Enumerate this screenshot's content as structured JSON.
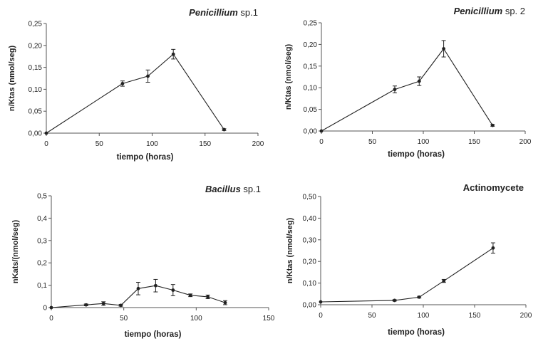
{
  "chart_data": [
    {
      "type": "line",
      "title": {
        "genus": "Penicillium",
        "suffix": " sp.1"
      },
      "xlabel": "tiempo (horas)",
      "ylabel": "n/Ktas (nmol/seg)",
      "xlim": [
        0,
        200
      ],
      "ylim": [
        0,
        0.25
      ],
      "xticks": [
        "0",
        "50",
        "100",
        "150",
        "200"
      ],
      "yticks": [
        "0,00",
        "0,05",
        "0,10",
        "0,15",
        "0,20",
        "0,25"
      ],
      "series": [
        {
          "x": [
            0,
            72,
            96,
            120,
            168
          ],
          "y": [
            0.0,
            0.113,
            0.13,
            0.18,
            0.008
          ],
          "err": [
            0.0,
            0.006,
            0.014,
            0.011,
            0.002
          ]
        }
      ]
    },
    {
      "type": "line",
      "title": {
        "genus": "Penicillium",
        "suffix": " sp. 2"
      },
      "xlabel": "tiempo (horas)",
      "ylabel": "n/Ktas (nmol/seg)",
      "xlim": [
        0,
        200
      ],
      "ylim": [
        0,
        0.25
      ],
      "xticks": [
        "0",
        "50",
        "100",
        "150",
        "200"
      ],
      "yticks": [
        "0,00",
        "0,05",
        "0,10",
        "0,15",
        "0,20",
        "0,25"
      ],
      "series": [
        {
          "x": [
            0,
            72,
            96,
            120,
            168
          ],
          "y": [
            0.0,
            0.096,
            0.115,
            0.19,
            0.013
          ],
          "err": [
            0.0,
            0.008,
            0.01,
            0.019,
            0.002
          ]
        }
      ]
    },
    {
      "type": "line",
      "title": {
        "genus": "Bacillus",
        "suffix": " sp.1"
      },
      "xlabel": "tiempo (horas)",
      "ylabel": "nKats/(nmol/seg)",
      "xlim": [
        0,
        150
      ],
      "ylim": [
        0,
        0.5
      ],
      "xticks": [
        "0",
        "50",
        "100",
        "150"
      ],
      "yticks": [
        "0",
        "0,1",
        "0,2",
        "0,3",
        "0,4",
        "0,5"
      ],
      "series": [
        {
          "x": [
            0,
            24,
            36,
            48,
            60,
            72,
            84,
            96,
            108,
            120
          ],
          "y": [
            0.0,
            0.012,
            0.018,
            0.01,
            0.085,
            0.098,
            0.078,
            0.055,
            0.048,
            0.022
          ],
          "err": [
            0.0,
            0.004,
            0.008,
            0.004,
            0.028,
            0.028,
            0.025,
            0.006,
            0.008,
            0.009
          ]
        }
      ]
    },
    {
      "type": "line",
      "title": {
        "genus": "",
        "suffix": "Actinomycete"
      },
      "xlabel": "tiempo (horas)",
      "ylabel": "n/Ktas (nmol/seg)",
      "xlim": [
        0,
        200
      ],
      "ylim": [
        0,
        0.5
      ],
      "xticks": [
        "0",
        "50",
        "100",
        "150",
        "200"
      ],
      "yticks": [
        "0,00",
        "0,10",
        "0,20",
        "0,30",
        "0,40",
        "0,50"
      ],
      "series": [
        {
          "x": [
            0,
            72,
            96,
            120,
            168
          ],
          "y": [
            0.013,
            0.02,
            0.035,
            0.11,
            0.262
          ],
          "err": [
            0.0,
            0.003,
            0.004,
            0.007,
            0.024
          ]
        }
      ]
    }
  ]
}
